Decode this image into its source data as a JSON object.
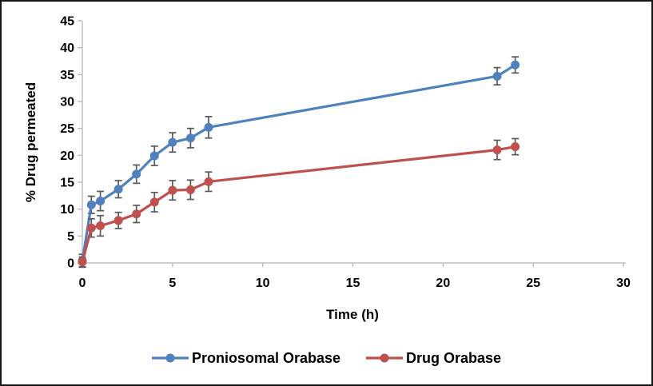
{
  "figure": {
    "background": "#ffffff",
    "border_color": "#161616"
  },
  "chart_data": {
    "type": "line",
    "title": "",
    "xlabel": "Time (h)",
    "ylabel": "% Drug permeated",
    "xlim": [
      0,
      30
    ],
    "ylim": [
      0,
      45
    ],
    "x_ticks": [
      0,
      5,
      10,
      15,
      20,
      25,
      30
    ],
    "y_ticks": [
      0,
      5,
      10,
      15,
      20,
      25,
      30,
      35,
      40,
      45
    ],
    "grid": false,
    "legend_position": "bottom",
    "axis_line_color": "#BFBFBF",
    "error_bar_color": "#595959",
    "x": [
      0,
      0.5,
      1,
      2,
      3,
      4,
      5,
      6,
      7,
      23,
      24
    ],
    "series": [
      {
        "name": "Proniosomal Orabase",
        "color": "#4F81BD",
        "values": [
          0.4,
          10.8,
          11.5,
          13.7,
          16.5,
          19.9,
          22.4,
          23.2,
          25.2,
          34.7,
          36.8
        ],
        "errors": [
          1.2,
          1.6,
          1.8,
          1.6,
          1.7,
          1.8,
          1.8,
          1.8,
          2.0,
          1.6,
          1.5
        ]
      },
      {
        "name": "Drug Orabase",
        "color": "#C0504D",
        "values": [
          0.2,
          6.5,
          6.9,
          7.9,
          9.1,
          11.3,
          13.5,
          13.6,
          15.1,
          21.0,
          21.6
        ],
        "errors": [
          0.9,
          1.7,
          1.9,
          1.5,
          1.6,
          1.8,
          1.8,
          1.8,
          1.8,
          1.8,
          1.5
        ]
      }
    ]
  }
}
